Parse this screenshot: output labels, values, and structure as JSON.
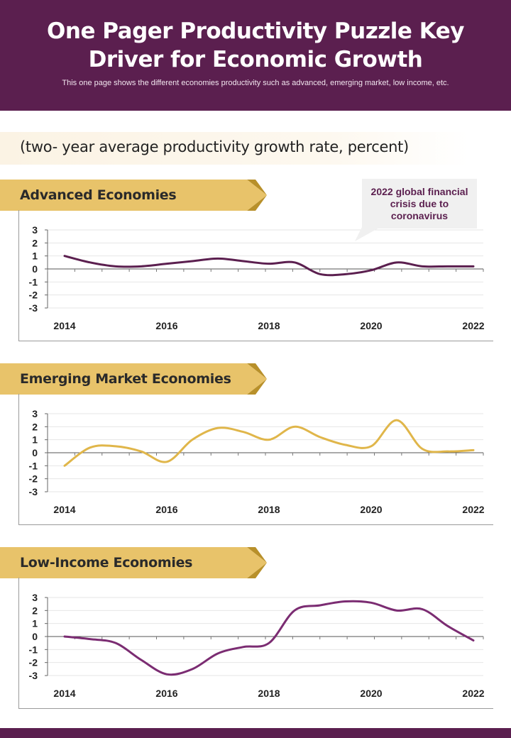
{
  "header": {
    "title": "One Pager Productivity Puzzle Key Driver for Economic Growth",
    "description": "This one page shows the different economies productivity such as advanced, emerging market, low income, etc."
  },
  "subtitle": "(two- year average productivity growth rate, percent)",
  "callout": "2022 global financial crisis due to coronavirus",
  "colors": {
    "brand": "#5b1f4f",
    "gold": "#e8c36a",
    "gold_dark": "#b8902a",
    "advanced_line": "#5b1f4f",
    "emerging_line": "#e0b64a",
    "low_income_line": "#7b2c72"
  },
  "chart_data": [
    {
      "type": "line",
      "title": "Advanced Economies",
      "x": [
        2014,
        2014.5,
        2015,
        2015.5,
        2016,
        2016.5,
        2017,
        2017.5,
        2018,
        2018.5,
        2019,
        2019.5,
        2020,
        2020.5,
        2021,
        2021.5,
        2022
      ],
      "values": [
        1.0,
        0.5,
        0.2,
        0.2,
        0.4,
        0.6,
        0.8,
        0.6,
        0.4,
        0.5,
        -0.4,
        -0.4,
        -0.1,
        0.5,
        0.2,
        0.2,
        0.2
      ],
      "xticks": [
        "2014",
        "2016",
        "2018",
        "2020",
        "2022"
      ],
      "yticks": [
        "3",
        "2",
        "1",
        "0",
        "-1",
        "-2",
        "-3"
      ],
      "ylim": [
        -3,
        3
      ],
      "xlim": [
        2014,
        2022
      ]
    },
    {
      "type": "line",
      "title": "Emerging Market Economies",
      "x": [
        2014,
        2014.5,
        2015,
        2015.5,
        2016,
        2016.5,
        2017,
        2017.5,
        2018,
        2018.5,
        2019,
        2019.5,
        2020,
        2020.5,
        2021,
        2021.5,
        2022
      ],
      "values": [
        -1.0,
        0.4,
        0.5,
        0.1,
        -0.7,
        1.0,
        1.9,
        1.6,
        1.0,
        2.0,
        1.2,
        0.6,
        0.5,
        2.5,
        0.3,
        0.1,
        0.2
      ],
      "xticks": [
        "2014",
        "2016",
        "2018",
        "2020",
        "2022"
      ],
      "yticks": [
        "3",
        "2",
        "1",
        "0",
        "-1",
        "-2",
        "-3"
      ],
      "ylim": [
        -3,
        3
      ],
      "xlim": [
        2014,
        2022
      ]
    },
    {
      "type": "line",
      "title": "Low-Income  Economies",
      "x": [
        2014,
        2014.5,
        2015,
        2015.5,
        2016,
        2016.5,
        2017,
        2017.5,
        2018,
        2018.5,
        2019,
        2019.5,
        2020,
        2020.5,
        2021,
        2021.5,
        2022
      ],
      "values": [
        0.0,
        -0.2,
        -0.5,
        -1.8,
        -2.9,
        -2.5,
        -1.3,
        -0.8,
        -0.5,
        2.0,
        2.4,
        2.7,
        2.6,
        2.0,
        2.1,
        0.8,
        -0.3
      ],
      "xticks": [
        "2014",
        "2016",
        "2018",
        "2020",
        "2022"
      ],
      "yticks": [
        "3",
        "2",
        "1",
        "0",
        "-1",
        "-2",
        "-3"
      ],
      "ylim": [
        -3,
        3
      ],
      "xlim": [
        2014,
        2022
      ]
    }
  ]
}
